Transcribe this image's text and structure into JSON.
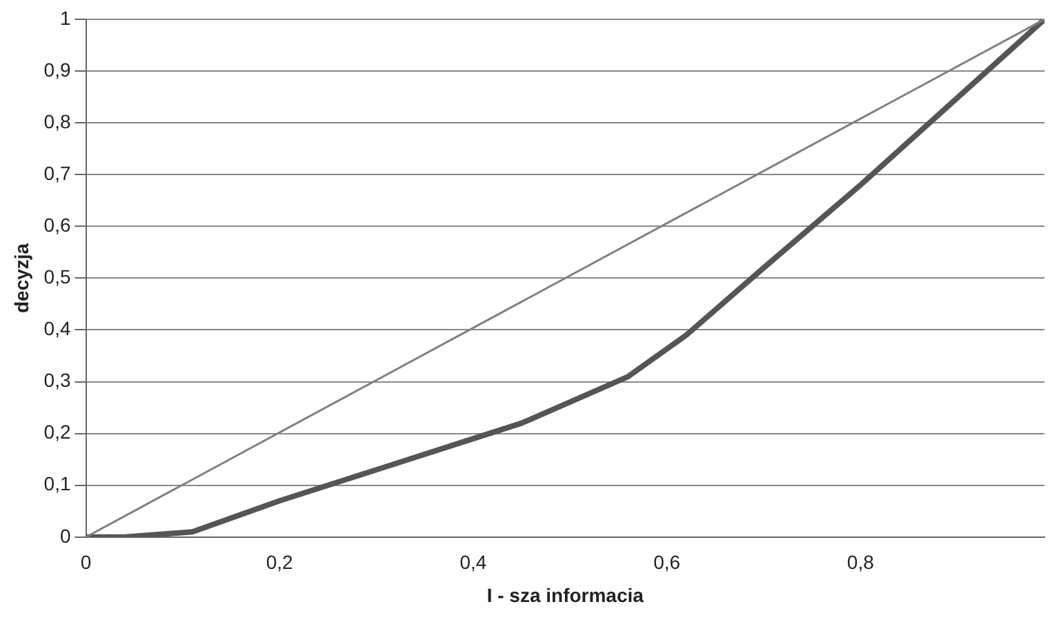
{
  "chart_data": {
    "type": "line",
    "xlabel": "I - sza informacia",
    "ylabel": "decyzja",
    "xlim": [
      0,
      0.99
    ],
    "ylim": [
      0,
      1
    ],
    "xticks": [
      0,
      {
        "value": 0.2,
        "label": "0,2"
      },
      {
        "value": 0.4,
        "label": "0,4"
      },
      {
        "value": 0.6,
        "label": "0,6"
      },
      {
        "value": 0.8,
        "label": "0,8"
      }
    ],
    "yticks": [
      0,
      {
        "value": 0.1,
        "label": "0,1"
      },
      {
        "value": 0.2,
        "label": "0,2"
      },
      {
        "value": 0.3,
        "label": "0,3"
      },
      {
        "value": 0.4,
        "label": "0,4"
      },
      {
        "value": 0.5,
        "label": "0,5"
      },
      {
        "value": 0.6,
        "label": "0,6"
      },
      {
        "value": 0.7,
        "label": "0,7"
      },
      {
        "value": 0.8,
        "label": "0,8"
      },
      {
        "value": 0.9,
        "label": "0,9"
      },
      1
    ],
    "grid": "y",
    "legend": false,
    "marker": "none",
    "line_style": "solid",
    "series": [
      {
        "color": "#808080",
        "x": [
          0,
          0.99
        ],
        "values": [
          0,
          1
        ]
      },
      {
        "color": "#555555",
        "x": [
          0,
          0.04,
          0.11,
          0.2,
          0.3,
          0.4,
          0.45,
          0.56,
          0.62,
          0.7,
          0.8,
          0.99
        ],
        "values": [
          0,
          0,
          0.01,
          0.07,
          0.13,
          0.19,
          0.22,
          0.31,
          0.39,
          0.52,
          0.68,
          1
        ]
      }
    ]
  }
}
